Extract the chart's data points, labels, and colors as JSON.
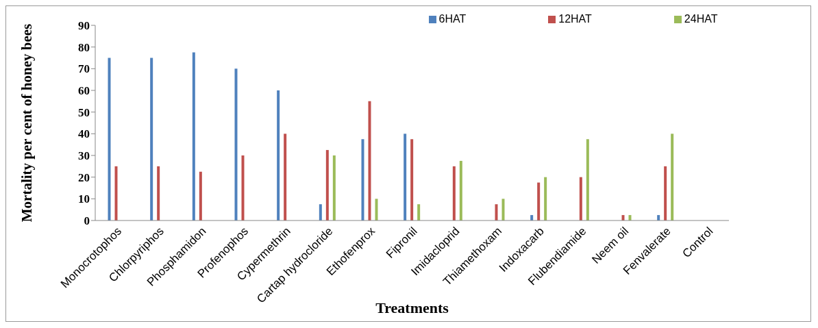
{
  "chart_data": {
    "type": "bar",
    "xlabel": "Treatments",
    "ylabel": "Mortality per cent of honey bees",
    "categories": [
      "Monocrotophos",
      "Chlorpyriphos",
      "Phosphamidon",
      "Profenophos",
      "Cypermethrin",
      "Cartap hydrocloride",
      "Ethofenprox",
      "Fipronil",
      "Imidacloprid",
      "Thiamethoxam",
      "Indoxacarb",
      "Flubendiamide",
      "Neem oil",
      "Fenvalerate",
      "Control"
    ],
    "series": [
      {
        "name": "6HAT",
        "color": "#4f81bd",
        "values": [
          75,
          75,
          77.5,
          70,
          60,
          7.5,
          37.5,
          40,
          0,
          0,
          2.5,
          0,
          0,
          2.5,
          0
        ]
      },
      {
        "name": "12HAT",
        "color": "#c0504d",
        "values": [
          25,
          25,
          22.5,
          30,
          40,
          32.5,
          55,
          37.5,
          25,
          7.5,
          17.5,
          20,
          2.5,
          25,
          0
        ]
      },
      {
        "name": "24HAT",
        "color": "#9bbb59",
        "values": [
          0,
          0,
          0,
          0,
          0,
          30,
          10,
          7.5,
          27.5,
          10,
          20,
          37.5,
          2.5,
          40,
          0
        ]
      }
    ],
    "ylim": [
      0,
      90
    ],
    "yticks": [
      0,
      10,
      20,
      30,
      40,
      50,
      60,
      70,
      80,
      90
    ],
    "grid": false,
    "legend": "top"
  }
}
